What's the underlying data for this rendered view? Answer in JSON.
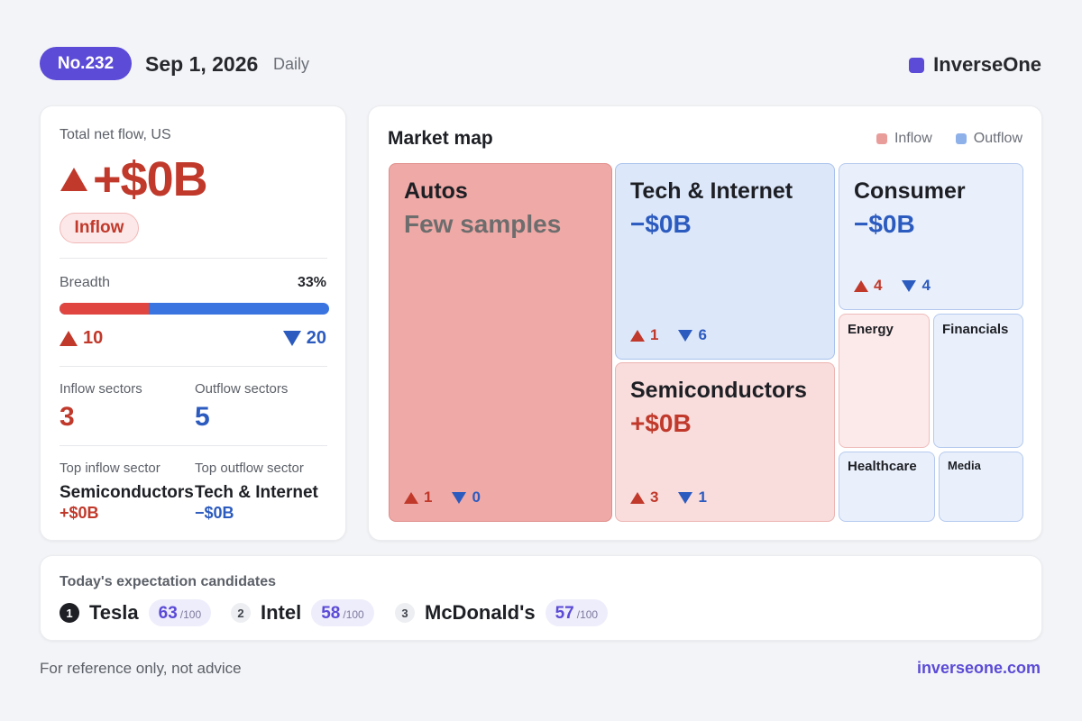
{
  "header": {
    "issue": "No.232",
    "date": "Sep 1, 2026",
    "frequency": "Daily",
    "brand": "InverseOne",
    "brand_color": "#5b4bd6"
  },
  "summary": {
    "net_flow_label": "Total net flow, US",
    "net_flow_value": "+$0B",
    "direction_badge": "Inflow",
    "breadth_label": "Breadth",
    "breadth_value": "33%",
    "breadth_fraction": 0.33,
    "up_count": "10",
    "down_count": "20",
    "inflow_sectors_label": "Inflow sectors",
    "inflow_sectors": "3",
    "outflow_sectors_label": "Outflow sectors",
    "outflow_sectors": "5",
    "top_inflow_label": "Top inflow sector",
    "top_inflow_name": "Semiconductors",
    "top_inflow_value": "+$0B",
    "top_outflow_label": "Top outflow sector",
    "top_outflow_name": "Tech & Internet",
    "top_outflow_value": "−$0B"
  },
  "market_map": {
    "title": "Market map",
    "legend_inflow": "Inflow",
    "legend_outflow": "Outflow",
    "inflow_color": "#e99d9a",
    "outflow_color": "#8fb1ea",
    "tiles": {
      "autos": {
        "name": "Autos",
        "value": "Few samples",
        "up": "1",
        "down": "0"
      },
      "tech": {
        "name": "Tech & Internet",
        "value": "−$0B",
        "up": "1",
        "down": "6"
      },
      "semis": {
        "name": "Semiconductors",
        "value": "+$0B",
        "up": "3",
        "down": "1"
      },
      "consumer": {
        "name": "Consumer",
        "value": "−$0B",
        "up": "4",
        "down": "4"
      },
      "energy": {
        "name": "Energy"
      },
      "financials": {
        "name": "Financials"
      },
      "healthcare": {
        "name": "Healthcare"
      },
      "media": {
        "name": "Media"
      }
    }
  },
  "candidates": {
    "title": "Today's expectation candidates",
    "items": [
      {
        "rank": "1",
        "name": "Tesla",
        "score": "63",
        "denom": "/100"
      },
      {
        "rank": "2",
        "name": "Intel",
        "score": "58",
        "denom": "/100"
      },
      {
        "rank": "3",
        "name": "McDonald's",
        "score": "57",
        "denom": "/100"
      }
    ]
  },
  "footer": {
    "disclaimer": "For reference only, not advice",
    "site": "inverseone.com"
  }
}
